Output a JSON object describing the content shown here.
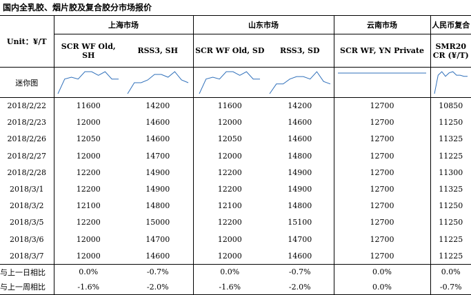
{
  "title": "国内全乳胶、烟片胶及复合胶分市场报价",
  "header": {
    "unit_label": "Unit：¥/T",
    "markets": [
      {
        "name": "上海市场",
        "cols": [
          "SCR WF Old, SH",
          "RSS3, SH"
        ]
      },
      {
        "name": "山东市场",
        "cols": [
          "SCR WF Old, SD",
          "RSS3, SD"
        ]
      },
      {
        "name": "云南市场",
        "cols": [
          "SCR WF, YN Private"
        ]
      },
      {
        "name": "人民币复合",
        "cols": [
          "SMR20 CR (¥/T)"
        ]
      }
    ]
  },
  "sparkline_label": "迷你图",
  "rows": [
    {
      "date": "2018/2/22",
      "values": [
        "11600",
        "14200",
        "11600",
        "14200",
        "12700",
        "10850"
      ]
    },
    {
      "date": "2018/2/23",
      "values": [
        "12000",
        "14600",
        "12000",
        "14600",
        "12700",
        "11250"
      ]
    },
    {
      "date": "2018/2/26",
      "values": [
        "12050",
        "14600",
        "12050",
        "14600",
        "12700",
        "11325"
      ]
    },
    {
      "date": "2018/2/27",
      "values": [
        "12000",
        "14700",
        "12000",
        "14800",
        "12700",
        "11225"
      ]
    },
    {
      "date": "2018/2/28",
      "values": [
        "12200",
        "14900",
        "12200",
        "14900",
        "12700",
        "11300"
      ]
    },
    {
      "date": "2018/3/1",
      "values": [
        "12200",
        "14900",
        "12200",
        "14900",
        "12700",
        "11325"
      ]
    },
    {
      "date": "2018/3/2",
      "values": [
        "12100",
        "14800",
        "12100",
        "14800",
        "12700",
        "11250"
      ]
    },
    {
      "date": "2018/3/5",
      "values": [
        "12200",
        "15000",
        "12200",
        "15100",
        "12700",
        "11250"
      ]
    },
    {
      "date": "2018/3/6",
      "values": [
        "12000",
        "14700",
        "12000",
        "14700",
        "12700",
        "11225"
      ]
    },
    {
      "date": "2018/3/7",
      "values": [
        "12000",
        "14600",
        "12000",
        "14600",
        "12700",
        "11225"
      ]
    }
  ],
  "changes": [
    {
      "label": "与上一日相比",
      "values": [
        "0.0%",
        "-0.7%",
        "0.0%",
        "-0.7%",
        "0.0%",
        "0.0%"
      ]
    },
    {
      "label": "与上一周相比",
      "values": [
        "-1.6%",
        "-2.0%",
        "-1.6%",
        "-2.0%",
        "0.0%",
        "-0.7%"
      ]
    }
  ],
  "colors": {
    "sparkline": "#2e6fba",
    "rule": "#000000"
  }
}
